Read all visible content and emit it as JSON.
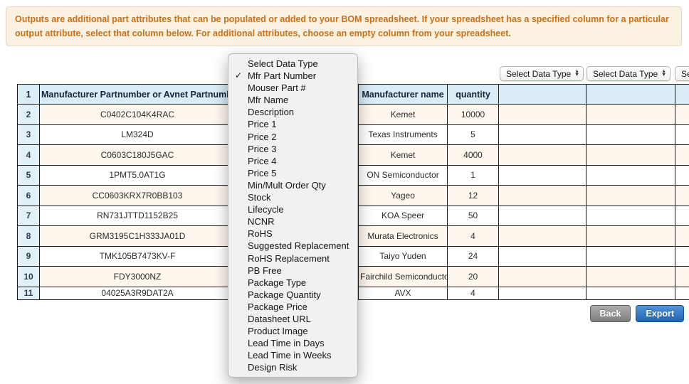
{
  "banner": {
    "text": "Outputs are additional part attributes that can be populated or added to your BOM spreadsheet. If your spreadsheet has a specified column for a particular output attribute, select that column below. For additional attributes, choose an empty column from your spreadsheet."
  },
  "toolbar": {
    "select_label": "Select Data Type"
  },
  "menu": {
    "check_glyph": "✓",
    "items": [
      {
        "label": "Select Data Type",
        "checked": false
      },
      {
        "label": "Mfr Part Number",
        "checked": true
      },
      {
        "label": "Mouser Part #",
        "checked": false
      },
      {
        "label": "Mfr Name",
        "checked": false
      },
      {
        "label": "Description",
        "checked": false
      },
      {
        "label": "Price 1",
        "checked": false
      },
      {
        "label": "Price 2",
        "checked": false
      },
      {
        "label": "Price 3",
        "checked": false
      },
      {
        "label": "Price 4",
        "checked": false
      },
      {
        "label": "Price 5",
        "checked": false
      },
      {
        "label": "Min/Mult Order Qty",
        "checked": false
      },
      {
        "label": "Stock",
        "checked": false
      },
      {
        "label": "Lifecycle",
        "checked": false
      },
      {
        "label": "NCNR",
        "checked": false
      },
      {
        "label": "RoHS",
        "checked": false
      },
      {
        "label": "Suggested Replacement",
        "checked": false
      },
      {
        "label": "RoHS Replacement",
        "checked": false
      },
      {
        "label": "PB Free",
        "checked": false
      },
      {
        "label": "Package Type",
        "checked": false
      },
      {
        "label": "Package Quantity",
        "checked": false
      },
      {
        "label": "Package Price",
        "checked": false
      },
      {
        "label": "Datasheet URL",
        "checked": false
      },
      {
        "label": "Product Image",
        "checked": false
      },
      {
        "label": "Lead Time in Days",
        "checked": false
      },
      {
        "label": "Lead Time in Weeks",
        "checked": false
      },
      {
        "label": "Design Risk",
        "checked": false
      }
    ]
  },
  "table": {
    "headers": [
      "1",
      "Manufacturer Partnumber or Avnet Partnumber",
      "",
      "Manufacturer name",
      "quantity",
      "",
      "",
      ""
    ],
    "rows": [
      [
        "2",
        "C0402C104K4RAC",
        "",
        "Kemet",
        "10000",
        "",
        "",
        ""
      ],
      [
        "3",
        "LM324D",
        "",
        "Texas Instruments",
        "5",
        "",
        "",
        ""
      ],
      [
        "4",
        "C0603C180J5GAC",
        "",
        "Kemet",
        "4000",
        "",
        "",
        ""
      ],
      [
        "5",
        "1PMT5.0AT1G",
        "",
        "ON Semiconductor",
        "1",
        "",
        "",
        ""
      ],
      [
        "6",
        "CC0603KRX7R0BB103",
        "",
        "Yageo",
        "12",
        "",
        "",
        ""
      ],
      [
        "7",
        "RN731JTTD1152B25",
        "",
        "KOA Speer",
        "50",
        "",
        "",
        ""
      ],
      [
        "8",
        "GRM3195C1H333JA01D",
        "",
        "Murata Electronics",
        "4",
        "",
        "",
        ""
      ],
      [
        "9",
        "TMK105B7473KV-F",
        "",
        "Taiyo Yuden",
        "24",
        "",
        "",
        ""
      ],
      [
        "10",
        "FDY3000NZ",
        "",
        "Fairchild Semiconductor",
        "20",
        "",
        "",
        ""
      ],
      [
        "11",
        "04025A3R9DAT2A",
        "",
        "AVX",
        "4",
        "",
        "",
        ""
      ]
    ]
  },
  "buttons": {
    "back": "Back",
    "export": "Export"
  },
  "colors": {
    "banner_text": "#c8711c",
    "banner_bg": "#fbf1e1",
    "header_bg": "#daecf6",
    "stripe_bg": "#fdf7ee",
    "export_blue": "#2063b2",
    "back_gray": "#7e7e7e"
  }
}
